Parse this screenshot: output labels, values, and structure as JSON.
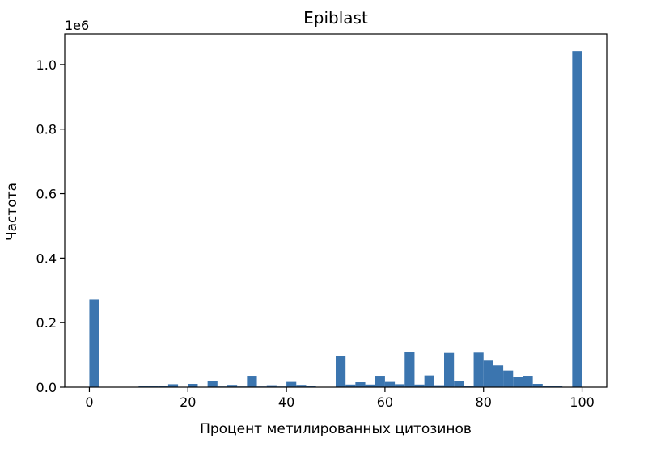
{
  "chart_data": {
    "type": "bar",
    "title": "Epiblast",
    "xlabel": "Процент метилированных цитозинов",
    "ylabel": "Частота",
    "offset_label": "1e6",
    "scale_multiplier": 1000000,
    "xlim": [
      -5,
      105
    ],
    "ylim": [
      0,
      1.095
    ],
    "xticks": [
      0,
      20,
      40,
      60,
      80,
      100
    ],
    "yticks": [
      0.0,
      0.2,
      0.4,
      0.6,
      0.8,
      1.0
    ],
    "ytick_labels": [
      "0.0",
      "0.2",
      "0.4",
      "0.6",
      "0.8",
      "1.0"
    ],
    "bin_width": 2,
    "bins": [
      0,
      2,
      4,
      6,
      8,
      10,
      12,
      14,
      16,
      18,
      20,
      22,
      24,
      26,
      28,
      30,
      32,
      34,
      36,
      38,
      40,
      42,
      44,
      46,
      48,
      50,
      52,
      54,
      56,
      58,
      60,
      62,
      64,
      66,
      68,
      70,
      72,
      74,
      76,
      78,
      80,
      82,
      84,
      86,
      88,
      90,
      92,
      94,
      96,
      98
    ],
    "values": [
      0.272,
      0,
      0,
      0,
      0,
      0.005,
      0.005,
      0.005,
      0.009,
      0.001,
      0.01,
      0.001,
      0.02,
      0.002,
      0.007,
      0.002,
      0.035,
      0.002,
      0.006,
      0.002,
      0.016,
      0.007,
      0.004,
      0,
      0,
      0.096,
      0.008,
      0.015,
      0.008,
      0.035,
      0.016,
      0.009,
      0.11,
      0.008,
      0.036,
      0.006,
      0.106,
      0.02,
      0.005,
      0.107,
      0.082,
      0.067,
      0.051,
      0.032,
      0.035,
      0.01,
      0.004,
      0.004,
      0,
      1.042
    ],
    "grid": false,
    "color": "#3b75af"
  }
}
